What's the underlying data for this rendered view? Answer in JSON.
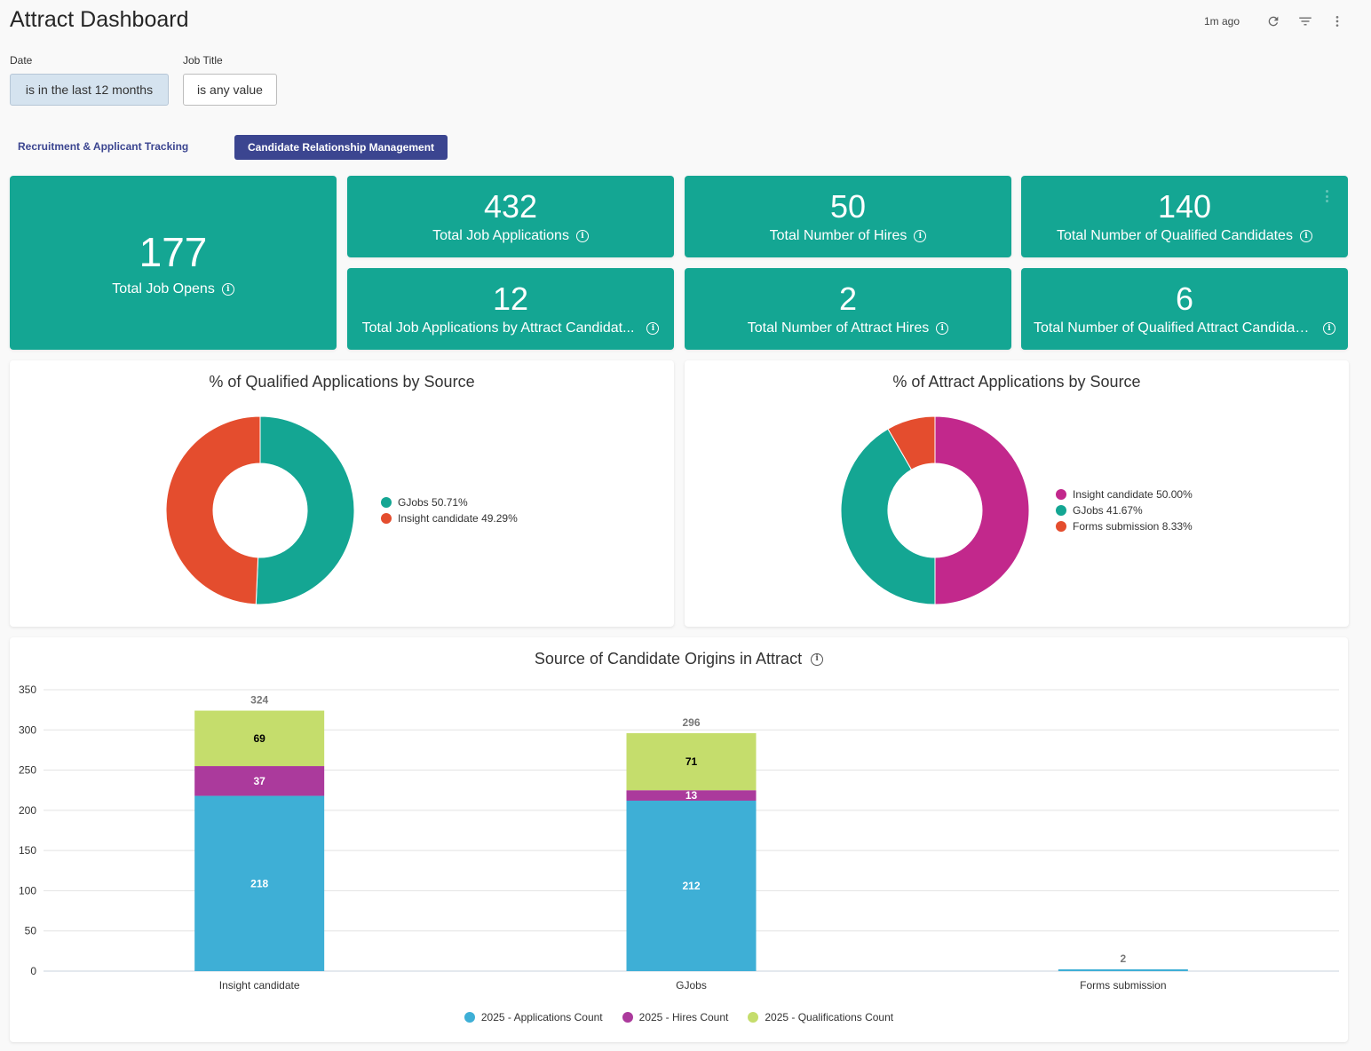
{
  "header": {
    "title": "Attract Dashboard",
    "updated": "1m ago",
    "icons": [
      "refresh-icon",
      "filter-icon",
      "more-vert-icon"
    ]
  },
  "filters": [
    {
      "label": "Date",
      "value": "is in the last 12 months",
      "active": true
    },
    {
      "label": "Job Title",
      "value": "is any value",
      "active": false
    }
  ],
  "tabs": [
    {
      "label": "Recruitment & Applicant Tracking",
      "active": false
    },
    {
      "label": "Candidate Relationship Management",
      "active": true
    }
  ],
  "kpis": {
    "job_opens": {
      "value": "177",
      "label": "Total Job Opens"
    },
    "job_applications": {
      "value": "432",
      "label": "Total Job Applications"
    },
    "hires": {
      "value": "50",
      "label": "Total Number of Hires"
    },
    "qualified": {
      "value": "140",
      "label": "Total Number of Qualified Candidates"
    },
    "attract_applications": {
      "value": "12",
      "label": "Total Job Applications by Attract Candidat..."
    },
    "attract_hires": {
      "value": "2",
      "label": "Total Number of Attract Hires"
    },
    "attract_qualified": {
      "value": "6",
      "label": "Total Number of Qualified Attract Candidat..."
    }
  },
  "colors": {
    "kpi_bg": "#14a693",
    "teal": "#14a693",
    "orange": "#e44d2e",
    "magenta": "#c2288c",
    "applications": "#3eafd6",
    "hires": "#ab3a9c",
    "qualifications": "#c5dd6c",
    "tab_active": "#3b4590"
  },
  "chart_data": [
    {
      "type": "pie",
      "donut": true,
      "title": "% of Qualified Applications by Source",
      "slices": [
        {
          "label": "GJobs",
          "value": 50.71,
          "display": "GJobs 50.71%",
          "color": "#14a693"
        },
        {
          "label": "Insight candidate",
          "value": 49.29,
          "display": "Insight candidate 49.29%",
          "color": "#e44d2e"
        }
      ],
      "legend": "right"
    },
    {
      "type": "pie",
      "donut": true,
      "title": "% of Attract Applications by Source",
      "slices": [
        {
          "label": "Insight candidate",
          "value": 50.0,
          "display": "Insight candidate 50.00%",
          "color": "#c2288c"
        },
        {
          "label": "GJobs",
          "value": 41.67,
          "display": "GJobs 41.67%",
          "color": "#14a693"
        },
        {
          "label": "Forms submission",
          "value": 8.33,
          "display": "Forms submission 8.33%",
          "color": "#e44d2e"
        }
      ],
      "legend": "right"
    },
    {
      "type": "bar",
      "stacked": true,
      "title": "Source of Candidate Origins in Attract",
      "categories": [
        "Insight candidate",
        "GJobs",
        "Forms submission"
      ],
      "series": [
        {
          "name": "2025 - Applications Count",
          "values": [
            218,
            212,
            2
          ],
          "color": "#3eafd6",
          "label_color": "#ffffff"
        },
        {
          "name": "2025 - Hires Count",
          "values": [
            37,
            13,
            0
          ],
          "color": "#ab3a9c",
          "label_color": "#ffffff"
        },
        {
          "name": "2025 - Qualifications Count",
          "values": [
            69,
            71,
            0
          ],
          "color": "#c5dd6c",
          "label_color": "#000000"
        }
      ],
      "totals": [
        324,
        296,
        2
      ],
      "yticks": [
        0,
        50,
        100,
        150,
        200,
        250,
        300,
        350
      ],
      "ylim": [
        0,
        350
      ],
      "xlabel": "",
      "ylabel": "",
      "grid": true,
      "legend": "bottom"
    }
  ]
}
